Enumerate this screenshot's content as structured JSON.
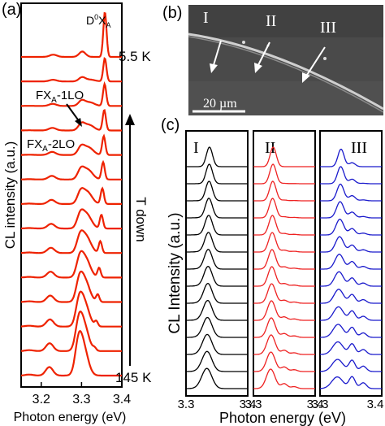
{
  "panel_a": {
    "label": "(a)",
    "ylabel": "CL intensity (a.u.)",
    "xlabel": "Photon energy (eV)",
    "xticks": [
      "3.2",
      "3.3",
      "3.4"
    ],
    "peak_label_main": "D",
    "peak_label_sup": "0",
    "peak_label_mid": "X",
    "peak_label_sub": "A",
    "temp_low": "5.5 K",
    "temp_high": "145 K",
    "lo1_label_a": "FX",
    "lo1_label_sub": "A",
    "lo1_label_b": "-1LO",
    "lo2_label_a": "FX",
    "lo2_label_sub": "A",
    "lo2_label_b": "-2LO",
    "arrow_label": "T down",
    "curve_color": "#ee2200"
  },
  "panel_b": {
    "label": "(b)",
    "regions": [
      "I",
      "II",
      "III"
    ],
    "scale_bar": "20 µm"
  },
  "panel_c": {
    "label": "(c)",
    "ylabel": "CL Intensity (a.u.)",
    "xlabel": "Photon energy (eV)",
    "subpanels": [
      {
        "name": "I",
        "color": "#000000",
        "xticks": [
          "3.3",
          "3.4"
        ]
      },
      {
        "name": "II",
        "color": "#ee2222",
        "xticks": [
          "3.3",
          "3.4"
        ]
      },
      {
        "name": "III",
        "color": "#1a1acc",
        "xticks": [
          "3.3",
          "3.4"
        ]
      }
    ]
  },
  "chart_data": [
    {
      "type": "line",
      "panel": "a",
      "xlim": [
        3.15,
        3.4
      ],
      "peaks": {
        "D0XA": 3.358,
        "FXA_1LO": 3.302,
        "FXA_2LO": 3.23
      },
      "series_count": 14
    },
    {
      "type": "line",
      "panel": "c",
      "xlim": [
        3.3,
        3.4
      ],
      "series_per_subpanel": 14
    }
  ]
}
